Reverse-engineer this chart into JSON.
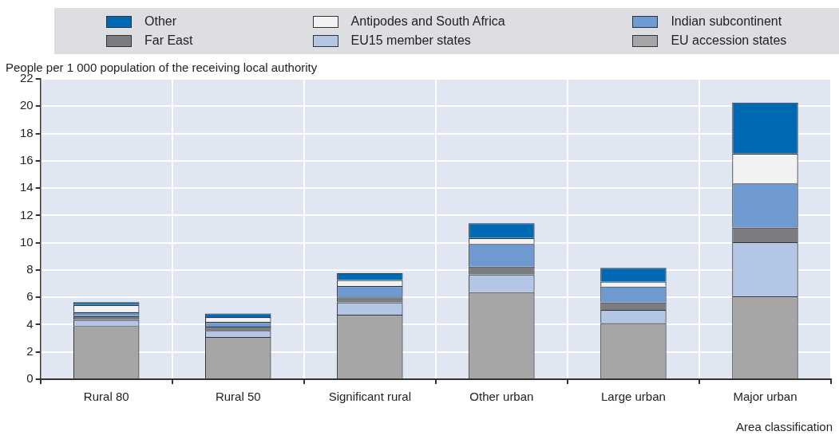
{
  "chart_data": {
    "type": "bar",
    "stacked": true,
    "ylabel": "People per 1 000 population of the receiving local authority",
    "xlabel": "Area classification",
    "categories": [
      "Rural 80",
      "Rural 50",
      "Significant rural",
      "Other urban",
      "Large urban",
      "Major urban"
    ],
    "series": [
      {
        "name": "EU accession states",
        "color": "#a6a6a6",
        "values": [
          3.9,
          3.1,
          4.73,
          6.38,
          4.11,
          6.07
        ]
      },
      {
        "name": "EU15 member states",
        "color": "#b3c6e5",
        "values": [
          0.45,
          0.45,
          0.9,
          1.29,
          0.97,
          3.96
        ]
      },
      {
        "name": "Far East",
        "color": "#7b7c80",
        "values": [
          0.27,
          0.3,
          0.36,
          0.58,
          0.55,
          1.09
        ]
      },
      {
        "name": "Indian subcontinent",
        "color": "#6f9ad1",
        "values": [
          0.3,
          0.35,
          0.84,
          1.65,
          1.16,
          3.22
        ]
      },
      {
        "name": "Antipodes and South Africa",
        "color": "#f2f2f2",
        "values": [
          0.52,
          0.35,
          0.43,
          0.44,
          0.35,
          2.19
        ]
      },
      {
        "name": "Other",
        "color": "#0069b4",
        "values": [
          0.2,
          0.27,
          0.52,
          1.09,
          1.01,
          3.74
        ]
      }
    ],
    "ylim": [
      0,
      22
    ],
    "yticks": [
      0,
      2,
      4,
      6,
      8,
      10,
      12,
      14,
      16,
      18,
      20,
      22
    ],
    "grid": true,
    "legend": "top"
  }
}
